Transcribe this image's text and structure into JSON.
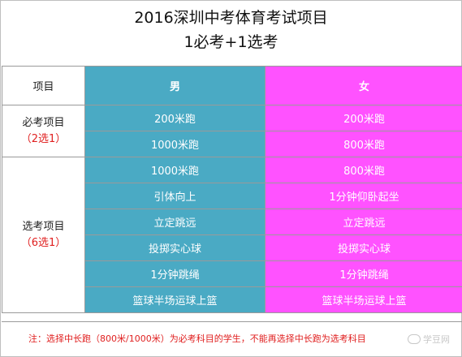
{
  "title": {
    "line1": "2016深圳中考体育考试项目",
    "line2": "1必考+1选考"
  },
  "header": {
    "item": "项目",
    "male": "男",
    "female": "女"
  },
  "groups": {
    "required": {
      "label": "必考项目",
      "sub": "（2选1）"
    },
    "elective": {
      "label": "选考项目",
      "sub": "（6选1）"
    }
  },
  "rows": [
    {
      "male": "200米跑",
      "female": "200米跑"
    },
    {
      "male": "1000米跑",
      "female": "800米跑"
    },
    {
      "male": "1000米跑",
      "female": "800米跑"
    },
    {
      "male": "引体向上",
      "female": "1分钟仰卧起坐"
    },
    {
      "male": "立定跳远",
      "female": "立定跳远"
    },
    {
      "male": "投掷实心球",
      "female": "投掷实心球"
    },
    {
      "male": "1分钟跳绳",
      "female": "1分钟跳绳"
    },
    {
      "male": "篮球半场运球上篮",
      "female": "篮球半场运球上篮"
    }
  ],
  "note": "注：选择中长跑（800米/1000米）为必考科目的学生，不能再选择中长跑为选考科目",
  "watermark": "学豆网",
  "colors": {
    "male": "#4aaac4",
    "female": "#ff52ff",
    "note": "#e02020"
  }
}
